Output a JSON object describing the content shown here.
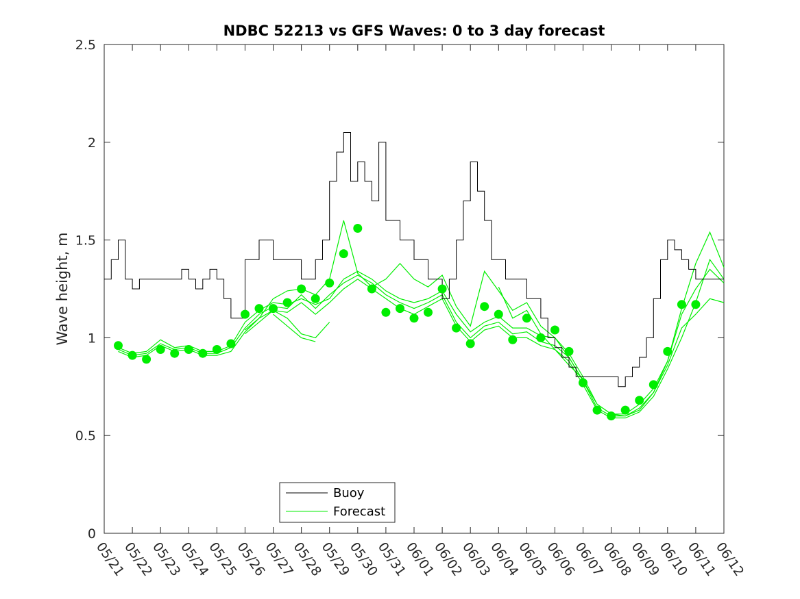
{
  "chart_data": {
    "type": "line",
    "title": "NDBC 52213 vs GFS Waves: 0 to 3 day forecast",
    "xlabel": "",
    "ylabel": "Wave height, m",
    "ylim": [
      0,
      2.5
    ],
    "yticks": [
      "0",
      "0.5",
      "1",
      "1.5",
      "2",
      "2.5"
    ],
    "x_tick_labels": [
      "05/21",
      "05/22",
      "05/23",
      "05/24",
      "05/25",
      "05/26",
      "05/27",
      "05/28",
      "05/29",
      "05/30",
      "05/31",
      "06/01",
      "06/02",
      "06/03",
      "06/04",
      "06/05",
      "06/06",
      "06/07",
      "06/08",
      "06/09",
      "06/10",
      "06/11",
      "06/12"
    ],
    "xlim_days": [
      0,
      22
    ],
    "grid": false,
    "legend": {
      "placement": "bottom-left",
      "entries": [
        "Buoy",
        "Forecast"
      ]
    },
    "colors": {
      "buoy": "#000000",
      "forecast": "#00ee00"
    },
    "buoy": {
      "name": "Buoy",
      "x_days": [
        0,
        0.25,
        0.5,
        0.75,
        1,
        1.25,
        1.5,
        1.75,
        2,
        2.25,
        2.5,
        2.75,
        3,
        3.25,
        3.5,
        3.75,
        4,
        4.25,
        4.5,
        4.75,
        5,
        5.25,
        5.5,
        5.75,
        6,
        6.25,
        6.5,
        6.75,
        7,
        7.25,
        7.5,
        7.75,
        8,
        8.25,
        8.5,
        8.75,
        9,
        9.25,
        9.5,
        9.75,
        10,
        10.25,
        10.5,
        10.75,
        11,
        11.25,
        11.5,
        11.75,
        12,
        12.25,
        12.5,
        12.75,
        13,
        13.25,
        13.5,
        13.75,
        14,
        14.25,
        14.5,
        14.75,
        15,
        15.25,
        15.5,
        15.75,
        16,
        16.25,
        16.5,
        16.75,
        17,
        17.25,
        17.5,
        17.75,
        18,
        18.25,
        18.5,
        18.75,
        19,
        19.25,
        19.5,
        19.75,
        20,
        20.25,
        20.5,
        20.75,
        21,
        21.25,
        21.5,
        21.75,
        22
      ],
      "values": [
        1.3,
        1.4,
        1.5,
        1.3,
        1.25,
        1.3,
        1.3,
        1.3,
        1.3,
        1.3,
        1.3,
        1.35,
        1.3,
        1.25,
        1.3,
        1.35,
        1.3,
        1.2,
        1.1,
        1.1,
        1.4,
        1.4,
        1.5,
        1.5,
        1.4,
        1.4,
        1.4,
        1.4,
        1.3,
        1.3,
        1.4,
        1.5,
        1.8,
        1.95,
        2.05,
        1.8,
        1.9,
        1.8,
        1.7,
        2.0,
        1.6,
        1.6,
        1.5,
        1.5,
        1.4,
        1.4,
        1.3,
        1.3,
        1.2,
        1.3,
        1.5,
        1.7,
        1.9,
        1.75,
        1.6,
        1.4,
        1.4,
        1.3,
        1.3,
        1.3,
        1.2,
        1.2,
        1.1,
        1.0,
        0.95,
        0.9,
        0.85,
        0.8,
        0.8,
        0.8,
        0.8,
        0.8,
        0.8,
        0.75,
        0.8,
        0.85,
        0.9,
        1.0,
        1.2,
        1.4,
        1.5,
        1.45,
        1.4,
        1.35,
        1.3,
        1.3,
        1.3,
        1.3,
        1.3
      ]
    },
    "forecast_points": {
      "name": "Forecast",
      "x_days": [
        0.5,
        1,
        1.5,
        2,
        2.5,
        3,
        3.5,
        4,
        4.5,
        5,
        5.5,
        6,
        6.5,
        7,
        7.5,
        8,
        8.5,
        9,
        9.5,
        10,
        10.5,
        11,
        11.5,
        12,
        12.5,
        13,
        13.5,
        14,
        14.5,
        15,
        15.5,
        16,
        16.5,
        17,
        17.5,
        18,
        18.5,
        19,
        19.5,
        20,
        20.5,
        21
      ],
      "values": [
        0.96,
        0.91,
        0.89,
        0.94,
        0.92,
        0.94,
        0.92,
        0.94,
        0.97,
        1.12,
        1.15,
        1.15,
        1.18,
        1.25,
        1.2,
        1.28,
        1.43,
        1.56,
        1.25,
        1.13,
        1.15,
        1.1,
        1.13,
        1.25,
        1.05,
        0.97,
        1.16,
        1.12,
        0.99,
        1.1,
        1.0,
        1.04,
        0.93,
        0.77,
        0.63,
        0.6,
        0.63,
        0.68,
        0.76,
        0.93,
        1.17,
        1.17
      ]
    },
    "forecast_runs": [
      {
        "x_days": [
          0.5,
          1,
          1.5,
          2,
          2.5,
          3,
          3.5,
          4,
          4.5,
          5,
          5.5,
          6,
          6.5,
          7,
          7.5,
          8,
          8.5,
          9,
          9.5,
          10,
          10.5,
          11,
          11.5,
          12,
          12.5,
          13,
          13.5,
          14,
          14.5,
          15,
          15.5,
          16,
          16.5,
          17,
          17.5,
          18,
          18.5,
          19,
          19.5,
          20,
          20.5,
          21,
          21.5,
          22
        ],
        "values": [
          0.95,
          0.92,
          0.93,
          0.99,
          0.95,
          0.96,
          0.93,
          0.93,
          0.96,
          1.08,
          1.14,
          1.18,
          1.17,
          1.2,
          1.17,
          1.2,
          1.3,
          1.34,
          1.3,
          1.24,
          1.2,
          1.18,
          1.2,
          1.24,
          1.12,
          1.03,
          1.08,
          1.11,
          1.05,
          1.05,
          1.01,
          1.0,
          0.92,
          0.8,
          0.66,
          0.61,
          0.61,
          0.66,
          0.74,
          0.88,
          1.12,
          1.25,
          1.35,
          1.28
        ]
      },
      {
        "x_days": [
          0.5,
          1,
          1.5,
          2,
          2.5,
          3,
          3.5,
          4,
          4.5,
          5,
          5.5,
          6,
          6.5,
          7,
          7.5,
          8,
          8.5,
          9,
          9.5,
          10,
          10.5,
          11,
          11.5,
          12,
          12.5,
          13,
          13.5,
          14,
          14.5,
          15,
          15.5,
          16,
          16.5,
          17,
          17.5,
          18,
          18.5,
          19,
          19.5,
          20,
          20.5,
          21,
          21.5,
          22
        ],
        "values": [
          0.94,
          0.91,
          0.92,
          0.97,
          0.94,
          0.95,
          0.92,
          0.92,
          0.95,
          1.05,
          1.12,
          1.16,
          1.15,
          1.22,
          1.15,
          1.22,
          1.28,
          1.32,
          1.28,
          1.22,
          1.18,
          1.15,
          1.18,
          1.22,
          1.08,
          1.0,
          1.06,
          1.08,
          1.02,
          1.03,
          0.98,
          0.96,
          0.9,
          0.78,
          0.64,
          0.6,
          0.6,
          0.64,
          0.72,
          0.86,
          1.05,
          1.12,
          1.2,
          1.18
        ]
      },
      {
        "x_days": [
          0.5,
          1,
          1.5,
          2,
          2.5,
          3,
          3.5,
          4,
          4.5,
          5,
          5.5,
          6,
          6.5,
          7,
          7.5,
          8,
          8.5,
          9,
          9.5,
          10,
          10.5,
          11,
          11.5,
          12,
          12.5,
          13,
          13.5,
          14,
          14.5,
          15,
          15.5,
          16,
          16.5,
          17,
          17.5,
          18,
          18.5,
          19,
          19.5,
          20,
          20.5,
          21,
          21.5,
          22
        ],
        "values": [
          0.93,
          0.9,
          0.91,
          0.96,
          0.93,
          0.94,
          0.91,
          0.91,
          0.93,
          1.03,
          1.1,
          1.14,
          1.13,
          1.18,
          1.12,
          1.18,
          1.25,
          1.3,
          1.25,
          1.2,
          1.15,
          1.12,
          1.16,
          1.2,
          1.06,
          0.98,
          1.04,
          1.06,
          1.0,
          1.0,
          0.96,
          0.94,
          0.88,
          0.76,
          0.63,
          0.59,
          0.59,
          0.62,
          0.7,
          0.84,
          1.0,
          1.18,
          1.4,
          1.3
        ]
      },
      {
        "x_days": [
          5,
          5.5,
          6,
          6.5,
          7,
          7.5,
          8,
          8.5,
          9,
          9.5,
          10,
          10.5,
          11,
          11.5,
          12,
          12.5,
          13,
          13.5,
          14,
          14.5,
          15,
          15.5,
          16,
          16.5,
          17,
          17.5,
          18,
          18.5,
          19,
          19.5,
          20,
          20.5,
          21,
          21.5,
          22
        ],
        "values": [
          1.04,
          1.1,
          1.2,
          1.24,
          1.25,
          1.22,
          1.3,
          1.6,
          1.33,
          1.26,
          1.3,
          1.38,
          1.3,
          1.26,
          1.32,
          1.16,
          1.06,
          1.34,
          1.24,
          1.14,
          1.18,
          1.06,
          1.0,
          0.9,
          0.78,
          0.66,
          0.61,
          0.6,
          0.63,
          0.72,
          0.88,
          1.15,
          1.38,
          1.54,
          1.36
        ]
      },
      {
        "x_days": [
          5,
          5.5,
          6,
          6.5,
          7,
          7.5,
          8
        ],
        "values": [
          1.02,
          1.08,
          1.14,
          1.1,
          1.02,
          1.0,
          1.08
        ]
      },
      {
        "x_days": [
          6,
          6.5,
          7,
          7.5
        ],
        "values": [
          1.12,
          1.06,
          1.0,
          0.98
        ]
      },
      {
        "x_days": [
          14,
          14.5,
          15,
          15.5,
          16,
          16.5,
          17
        ],
        "values": [
          1.26,
          1.1,
          1.14,
          1.02,
          0.94,
          0.86,
          0.79
        ]
      }
    ]
  }
}
